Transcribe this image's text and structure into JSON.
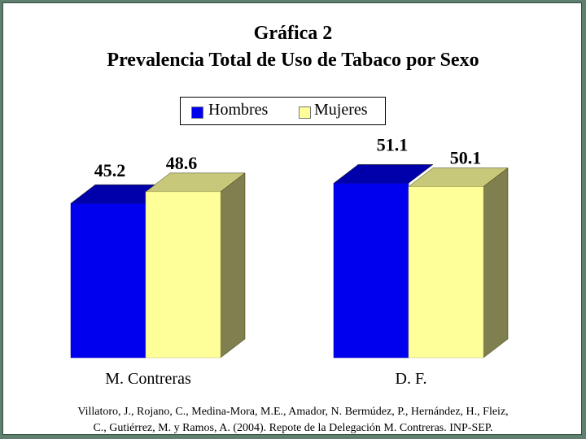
{
  "chart_data": {
    "type": "bar",
    "title": "Gráfica 2",
    "subtitle": "Prevalencia Total de Uso de Tabaco por Sexo",
    "categories": [
      "M. Contreras",
      "D. F."
    ],
    "series": [
      {
        "name": "Hombres",
        "values": [
          45.2,
          51.1
        ],
        "labels": [
          "45.2",
          "51.1"
        ]
      },
      {
        "name": "Mujeres",
        "values": [
          48.6,
          50.1
        ],
        "labels": [
          "48.6",
          "50.1"
        ]
      }
    ],
    "legend_position": "top-center",
    "grid": false,
    "colors": {
      "hombres_front": "#0000ee",
      "hombres_top": "#0000aa",
      "mujeres_front": "#ffff99",
      "mujeres_top": "#c8c87a",
      "side": "#7f7f4f"
    }
  },
  "source": {
    "line1": "Villatoro, J., Rojano, C., Medina-Mora, M.E., Amador, N. Bermúdez, P., Hernández, H., Fleiz,",
    "line2": "C., Gutiérrez, M. y Ramos, A. (2004). Repote de la Delegación M. Contreras. INP-SEP."
  }
}
